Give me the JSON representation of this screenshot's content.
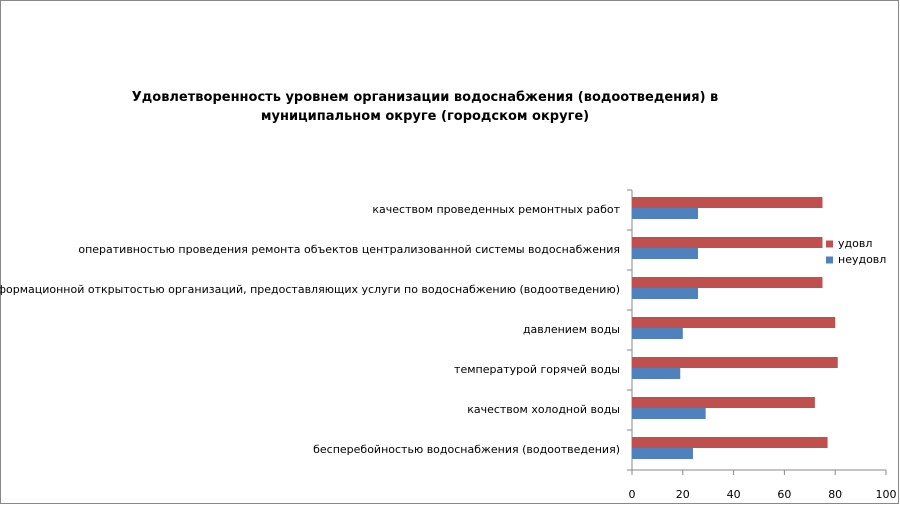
{
  "chart_data": {
    "type": "barh",
    "title": "Удовлетворенность уровнем организации водоснабжения (водоотведения) в муниципальном округе (городском округе)",
    "categories": [
      "качеством проведенных ремонтных работ",
      "оперативностью проведения ремонта объектов централизованной системы водоснабжения",
      "информационной открытостью организаций, предоставляющих услуги по водоснабжению (водоотведению)",
      "давлением воды",
      "температурой горячей воды",
      "качеством холодной воды",
      "бесперебойностью водоснабжения (водоотведения)"
    ],
    "series": [
      {
        "name": "удовл",
        "color": "#c0504d",
        "values": [
          75,
          75,
          75,
          80,
          81,
          72,
          77
        ]
      },
      {
        "name": "неудовл",
        "color": "#4f81bd",
        "values": [
          26,
          26,
          26,
          20,
          19,
          29,
          24
        ]
      }
    ],
    "xlim": [
      0,
      100
    ],
    "xticks": [
      0,
      20,
      40,
      60,
      80,
      100
    ],
    "grid": false,
    "legend": "right"
  }
}
